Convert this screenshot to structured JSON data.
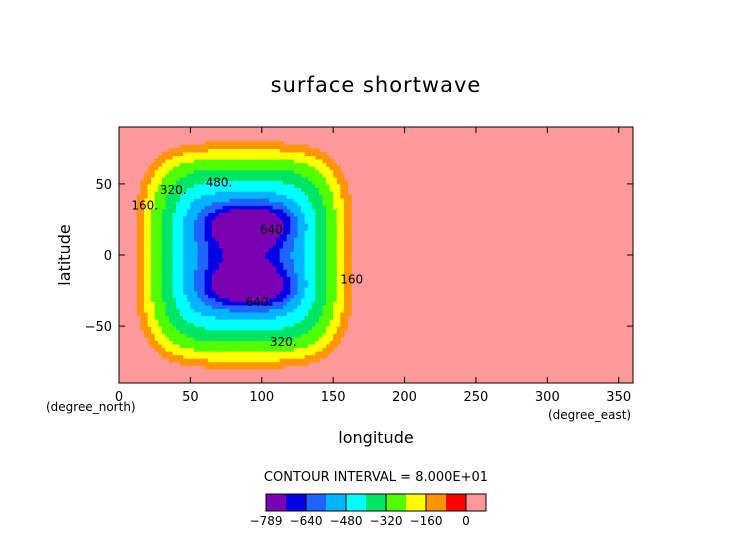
{
  "chart_data": {
    "type": "heatmap",
    "title": "surface shortwave",
    "xlabel": "longitude",
    "ylabel": "latitude",
    "x_unit": "(degree_east)",
    "y_unit": "(degree_north)",
    "xlim": [
      0,
      360
    ],
    "ylim": [
      -90,
      90
    ],
    "x_ticks": [
      0,
      50,
      100,
      150,
      200,
      250,
      300,
      350
    ],
    "y_ticks": [
      -50,
      0,
      50
    ],
    "x_tick_labels": [
      "0",
      "50",
      "100",
      "150",
      "200",
      "250",
      "300",
      "350"
    ],
    "y_tick_labels": [
      "−50",
      "0",
      "50"
    ],
    "grid": false,
    "contour_interval_text": "CONTOUR INTERVAL = 8.000E+01",
    "contour_levels": [
      -789,
      -720,
      -640,
      -560,
      -480,
      -400,
      -320,
      -240,
      -160,
      -80,
      0
    ],
    "colors": [
      "#7a00b4",
      "#0000e6",
      "#1e64ff",
      "#00b4ff",
      "#00ffff",
      "#00e664",
      "#50ff00",
      "#ffff00",
      "#ff9600",
      "#ff0000",
      "#ff9999"
    ],
    "colorbar_labels": [
      "−789",
      "−640",
      "−480",
      "−320",
      "−160",
      "0"
    ],
    "colorbar_label_levels": [
      -789,
      -640,
      -480,
      -320,
      -160,
      0
    ],
    "field": {
      "nonzero_lon_range": [
        10,
        165
      ],
      "minimum": -789,
      "minima_centers": [
        [
          92,
          22
        ],
        [
          92,
          -22
        ]
      ]
    },
    "contour_line_labels": [
      {
        "text": "160.",
        "lon": 18,
        "lat": 32
      },
      {
        "text": "320.",
        "lon": 38,
        "lat": 43
      },
      {
        "text": "480.",
        "lon": 70,
        "lat": 48
      },
      {
        "text": "640.",
        "lon": 108,
        "lat": 15
      },
      {
        "text": "640.",
        "lon": 98,
        "lat": -36
      },
      {
        "text": "160",
        "lon": 163,
        "lat": -20
      },
      {
        "text": "320.",
        "lon": 115,
        "lat": -64
      }
    ]
  }
}
